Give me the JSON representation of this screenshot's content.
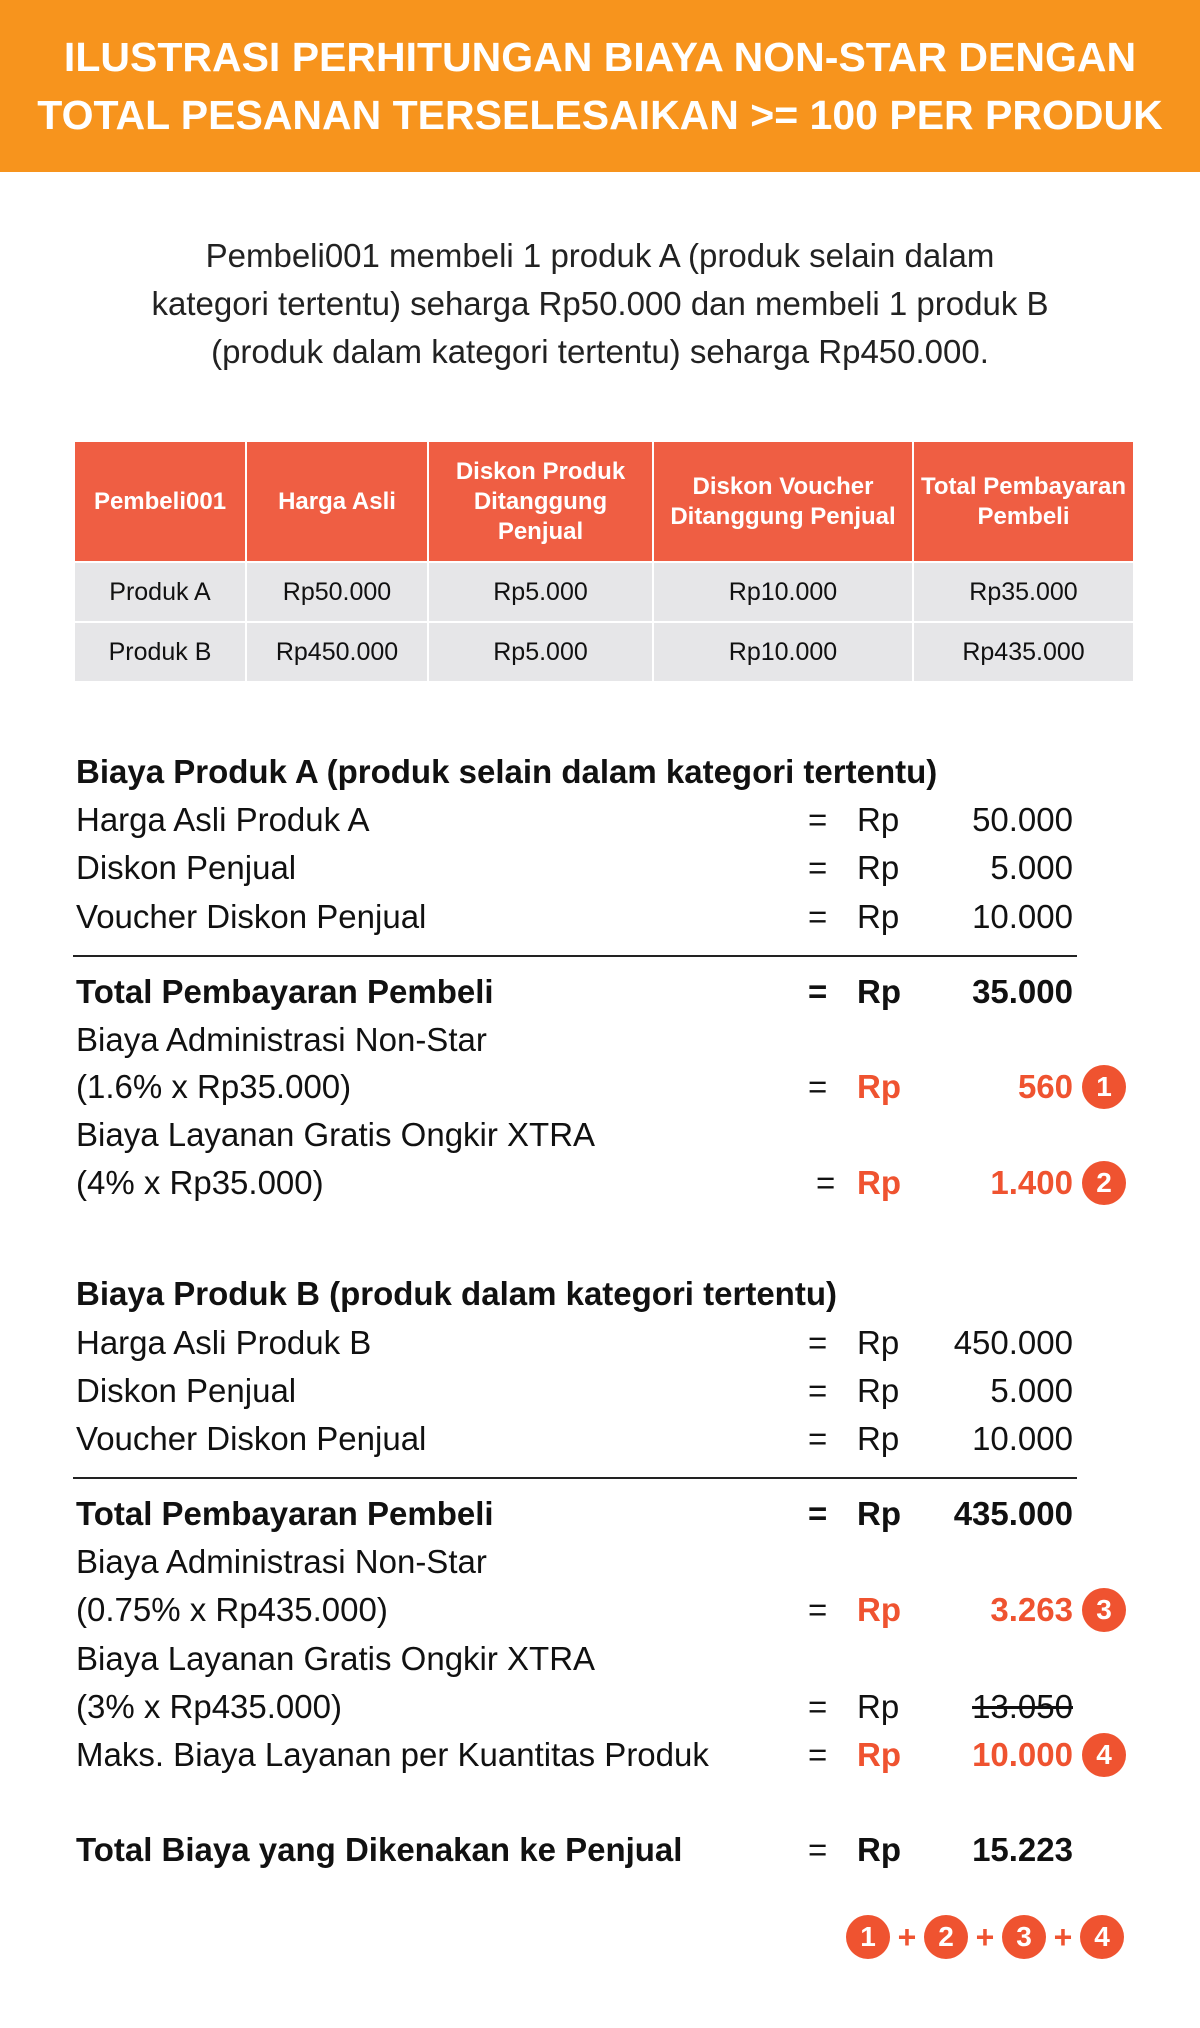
{
  "header": {
    "line1": "ILUSTRASI PERHITUNGAN BIAYA NON-STAR DENGAN",
    "line2": "TOTAL PESANAN TERSELESAIKAN >= 100 PER PRODUK"
  },
  "intro": {
    "line1": "Pembeli001 membeli 1 produk A (produk selain dalam",
    "line2": "kategori tertentu) seharga Rp50.000 dan membeli 1 produk B",
    "line3": "(produk dalam kategori tertentu) seharga Rp450.000."
  },
  "table": {
    "headers": [
      "Pembeli001",
      "Harga Asli",
      "Diskon Produk Ditanggung Penjual",
      "Diskon Voucher Ditanggung Penjual",
      "Total Pembayaran Pembeli"
    ],
    "rows": [
      [
        "Produk A",
        "Rp50.000",
        "Rp5.000",
        "Rp10.000",
        "Rp35.000"
      ],
      [
        "Produk B",
        "Rp450.000",
        "Rp5.000",
        "Rp10.000",
        "Rp435.000"
      ]
    ],
    "header_color": "#EF5E43",
    "row_color": "#E6E6E8"
  },
  "eq": "=",
  "rp": "Rp",
  "sectionA": {
    "title": "Biaya Produk A (produk selain dalam kategori tertentu)",
    "harga_label": "Harga Asli Produk A",
    "harga": "50.000",
    "diskon_label": "Diskon Penjual",
    "diskon": "5.000",
    "voucher_label": "Voucher Diskon Penjual",
    "voucher": "10.000",
    "total_label": "Total Pembayaran Pembeli",
    "total": "35.000",
    "admin_label": "Biaya Administrasi Non-Star",
    "admin_formula": "(1.6% x Rp35.000)",
    "admin": "560",
    "admin_badge": "1",
    "ongkir_label": "Biaya Layanan Gratis Ongkir XTRA",
    "ongkir_formula": "(4% x Rp35.000)",
    "ongkir": "1.400",
    "ongkir_badge": "2"
  },
  "sectionB": {
    "title": "Biaya Produk B (produk dalam kategori tertentu)",
    "harga_label": "Harga Asli Produk B",
    "harga": "450.000",
    "diskon_label": "Diskon Penjual",
    "diskon": "5.000",
    "voucher_label": "Voucher Diskon Penjual",
    "voucher": "10.000",
    "total_label": "Total Pembayaran Pembeli",
    "total": "435.000",
    "admin_label": "Biaya Administrasi Non-Star",
    "admin_formula": "(0.75% x Rp435.000)",
    "admin": "3.263",
    "admin_badge": "3",
    "ongkir_label": "Biaya Layanan Gratis Ongkir XTRA",
    "ongkir_formula": "(3% x Rp435.000)",
    "ongkir": "13.050",
    "maks_label": "Maks. Biaya Layanan per Kuantitas Produk",
    "maks": "10.000",
    "maks_badge": "4"
  },
  "grand": {
    "label": "Total Biaya yang Dikenakan ke Penjual",
    "value": "15.223",
    "formula": [
      "1",
      "2",
      "3",
      "4"
    ],
    "plus": "+"
  },
  "colors": {
    "orange": "#F7941D",
    "accent_red": "#EF5330"
  }
}
